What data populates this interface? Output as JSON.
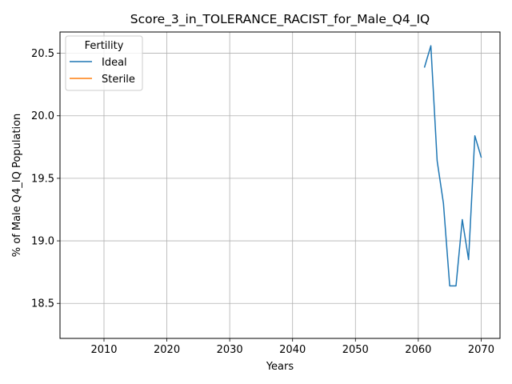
{
  "chart_data": {
    "type": "line",
    "title": "Score_3_in_TOLERANCE_RACIST_for_Male_Q4_IQ",
    "xlabel": "Years",
    "ylabel": "% of Male Q4_IQ Population",
    "xlim": [
      2003,
      2073
    ],
    "ylim": [
      18.22,
      20.67
    ],
    "xticks": [
      2010,
      2020,
      2030,
      2040,
      2050,
      2060,
      2070
    ],
    "yticks": [
      18.5,
      19.0,
      19.5,
      20.0,
      20.5
    ],
    "ytick_labels": [
      "18.5",
      "19.0",
      "19.5",
      "20.0",
      "20.5"
    ],
    "grid": true,
    "legend": {
      "title": "Fertility",
      "position": "top-left",
      "entries": [
        "Ideal",
        "Sterile"
      ]
    },
    "series": [
      {
        "name": "Ideal",
        "color": "#1f77b4",
        "x": [
          2061,
          2062,
          2063,
          2064,
          2065,
          2066,
          2067,
          2068,
          2069,
          2070
        ],
        "y": [
          20.39,
          20.56,
          19.64,
          19.3,
          18.64,
          18.64,
          19.17,
          18.85,
          19.84,
          19.67
        ]
      },
      {
        "name": "Sterile",
        "color": "#ff7f0e",
        "x": [],
        "y": []
      }
    ]
  }
}
